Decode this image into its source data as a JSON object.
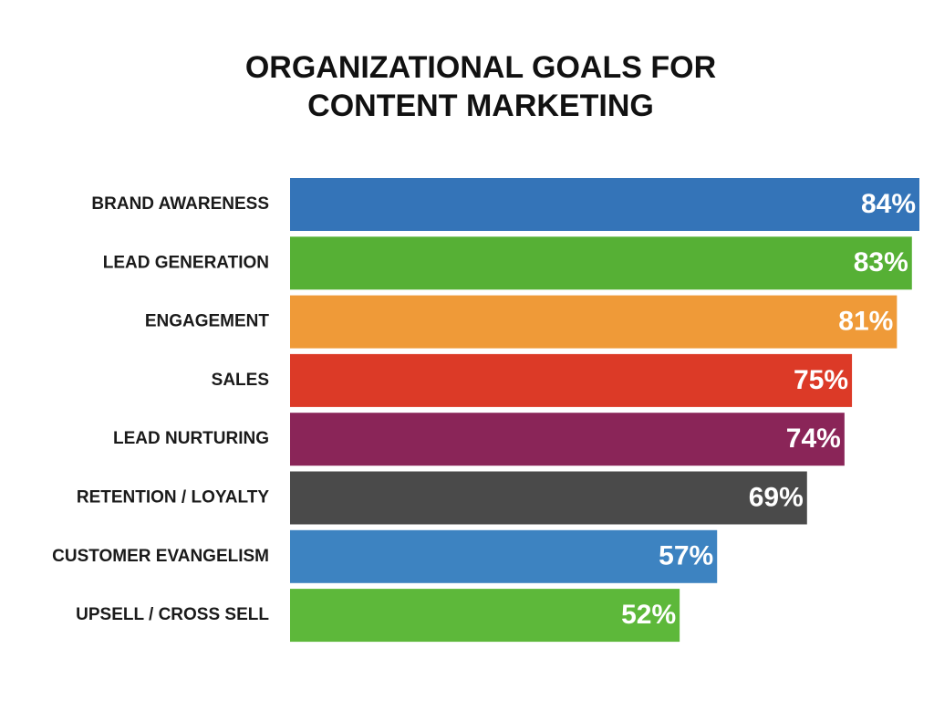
{
  "chart_data": {
    "type": "bar",
    "orientation": "horizontal",
    "title": [
      "ORGANIZATIONAL GOALS FOR",
      "CONTENT MARKETING"
    ],
    "categories": [
      "BRAND AWARENESS",
      "LEAD GENERATION",
      "ENGAGEMENT",
      "SALES",
      "LEAD NURTURING",
      "RETENTION / LOYALTY",
      "CUSTOMER EVANGELISM",
      "UPSELL / CROSS SELL"
    ],
    "values": [
      84,
      83,
      81,
      75,
      74,
      69,
      57,
      52
    ],
    "value_labels": [
      "84%",
      "83%",
      "81%",
      "75%",
      "74%",
      "69%",
      "57%",
      "52%"
    ],
    "colors": [
      "#3474b8",
      "#56b035",
      "#ef9a38",
      "#dc3a27",
      "#8a2558",
      "#4a4a4a",
      "#3d83c1",
      "#5db83a"
    ]
  }
}
